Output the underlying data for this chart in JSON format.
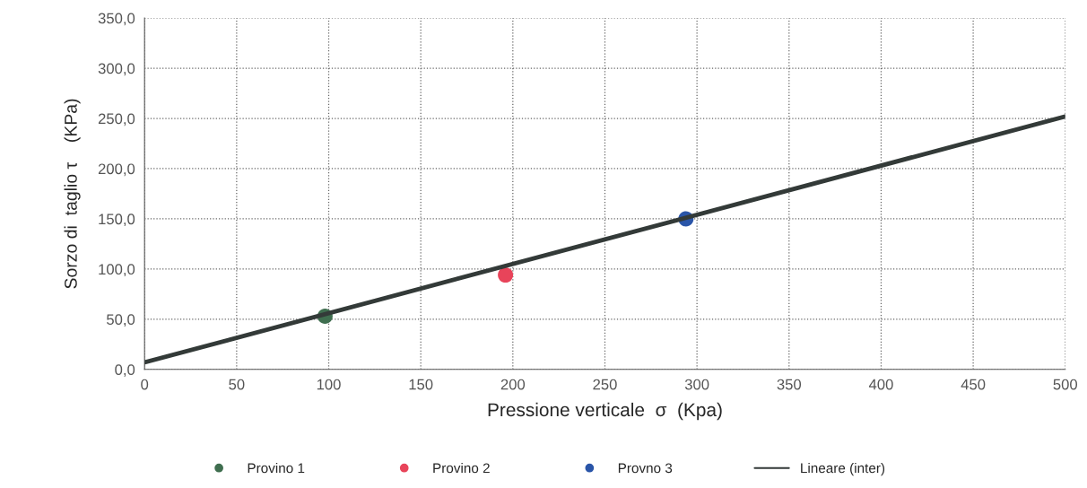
{
  "chart_data": {
    "type": "scatter",
    "xlabel": "Pressione verticale  σ  (Kpa)",
    "ylabel": "Sorzo di  taglio τ    (KPa)",
    "series": [
      {
        "name": "Provino 1",
        "color": "#3f6e4f",
        "x": [
          98
        ],
        "values": [
          53
        ]
      },
      {
        "name": "Provino 2",
        "color": "#e8445a",
        "x": [
          196
        ],
        "values": [
          94
        ]
      },
      {
        "name": "Provno 3",
        "color": "#2a55a8",
        "x": [
          294
        ],
        "values": [
          150
        ]
      },
      {
        "name": "Lineare (inter)",
        "type": "line",
        "marker": "none",
        "color": "#333a38",
        "x": [
          0,
          500
        ],
        "values": [
          7,
          252
        ]
      }
    ],
    "xlim": [
      0,
      500
    ],
    "xticks": [
      0,
      50,
      100,
      150,
      200,
      250,
      300,
      350,
      400,
      450,
      500
    ],
    "ylim": [
      0,
      350
    ],
    "yticks": [
      {
        "value": 0,
        "label": "0,0"
      },
      {
        "value": 50,
        "label": "50,0"
      },
      {
        "value": 100,
        "label": "100,0"
      },
      {
        "value": 150,
        "label": "150,0"
      },
      {
        "value": 200,
        "label": "200,0"
      },
      {
        "value": 250,
        "label": "250,0"
      },
      {
        "value": 300,
        "label": "300,0"
      },
      {
        "value": 350,
        "label": "350,0"
      }
    ],
    "grid": true,
    "legend": "bottom",
    "marker": "circle"
  }
}
